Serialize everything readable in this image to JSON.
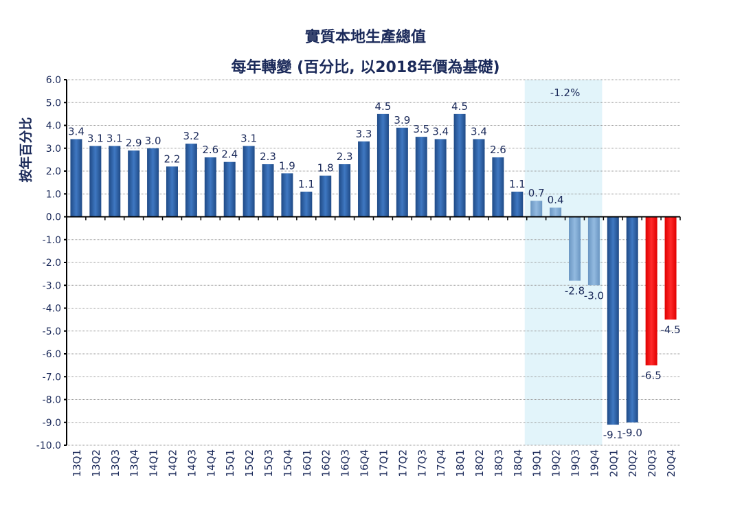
{
  "chart_data": {
    "type": "bar",
    "title": "實質本地生產總值",
    "subtitle": "每年轉變 (百分比, 以2018年價為基礎)",
    "ylabel": "按年百分比",
    "xlabel": "",
    "ylim": [
      -10.0,
      6.0
    ],
    "yticks": [
      "6.0",
      "5.0",
      "4.0",
      "3.0",
      "2.0",
      "1.0",
      "0.0",
      "-1.0",
      "-2.0",
      "-3.0",
      "-4.0",
      "-5.0",
      "-6.0",
      "-7.0",
      "-8.0",
      "-9.0",
      "-10.0"
    ],
    "grid": true,
    "categories": [
      "13Q1",
      "13Q2",
      "13Q3",
      "13Q4",
      "14Q1",
      "14Q2",
      "14Q3",
      "14Q4",
      "15Q1",
      "15Q2",
      "15Q3",
      "15Q4",
      "16Q1",
      "16Q2",
      "16Q3",
      "16Q4",
      "17Q1",
      "17Q2",
      "17Q3",
      "17Q4",
      "18Q1",
      "18Q2",
      "18Q3",
      "18Q4",
      "19Q1",
      "19Q2",
      "19Q3",
      "19Q4",
      "20Q1",
      "20Q2",
      "20Q3",
      "20Q4"
    ],
    "values": [
      3.4,
      3.1,
      3.1,
      2.9,
      3.0,
      2.2,
      3.2,
      2.6,
      2.4,
      3.1,
      2.3,
      1.9,
      1.1,
      1.8,
      2.3,
      3.3,
      4.5,
      3.9,
      3.5,
      3.4,
      4.5,
      3.4,
      2.6,
      1.1,
      0.7,
      0.4,
      -2.8,
      -3.0,
      -9.1,
      -9.0,
      -6.5,
      -4.5
    ],
    "labels": [
      "3.4",
      "3.1",
      "3.1",
      "2.9",
      "3.0",
      "2.2",
      "3.2",
      "2.6",
      "2.4",
      "3.1",
      "2.3",
      "1.9",
      "1.1",
      "1.8",
      "2.3",
      "3.3",
      "4.5",
      "3.9",
      "3.5",
      "3.4",
      "4.5",
      "3.4",
      "2.6",
      "1.1",
      "0.7",
      "0.4",
      "-2.8",
      "-3.0",
      "-9.1",
      "-9.0",
      "-6.5",
      "-4.5"
    ],
    "bar_groups": [
      "dark",
      "dark",
      "dark",
      "dark",
      "dark",
      "dark",
      "dark",
      "dark",
      "dark",
      "dark",
      "dark",
      "dark",
      "dark",
      "dark",
      "dark",
      "dark",
      "dark",
      "dark",
      "dark",
      "dark",
      "dark",
      "dark",
      "dark",
      "dark",
      "light",
      "light",
      "light",
      "light",
      "dark",
      "dark",
      "red",
      "red"
    ],
    "colors": {
      "dark": "#2f62a8",
      "light": "#7fa9d3",
      "red": "#ff0a0a",
      "highlight": "#e2f4fa",
      "text": "#1b2a5a"
    },
    "highlight": {
      "from": "19Q1",
      "to": "19Q4",
      "annotation": "-1.2%"
    }
  }
}
